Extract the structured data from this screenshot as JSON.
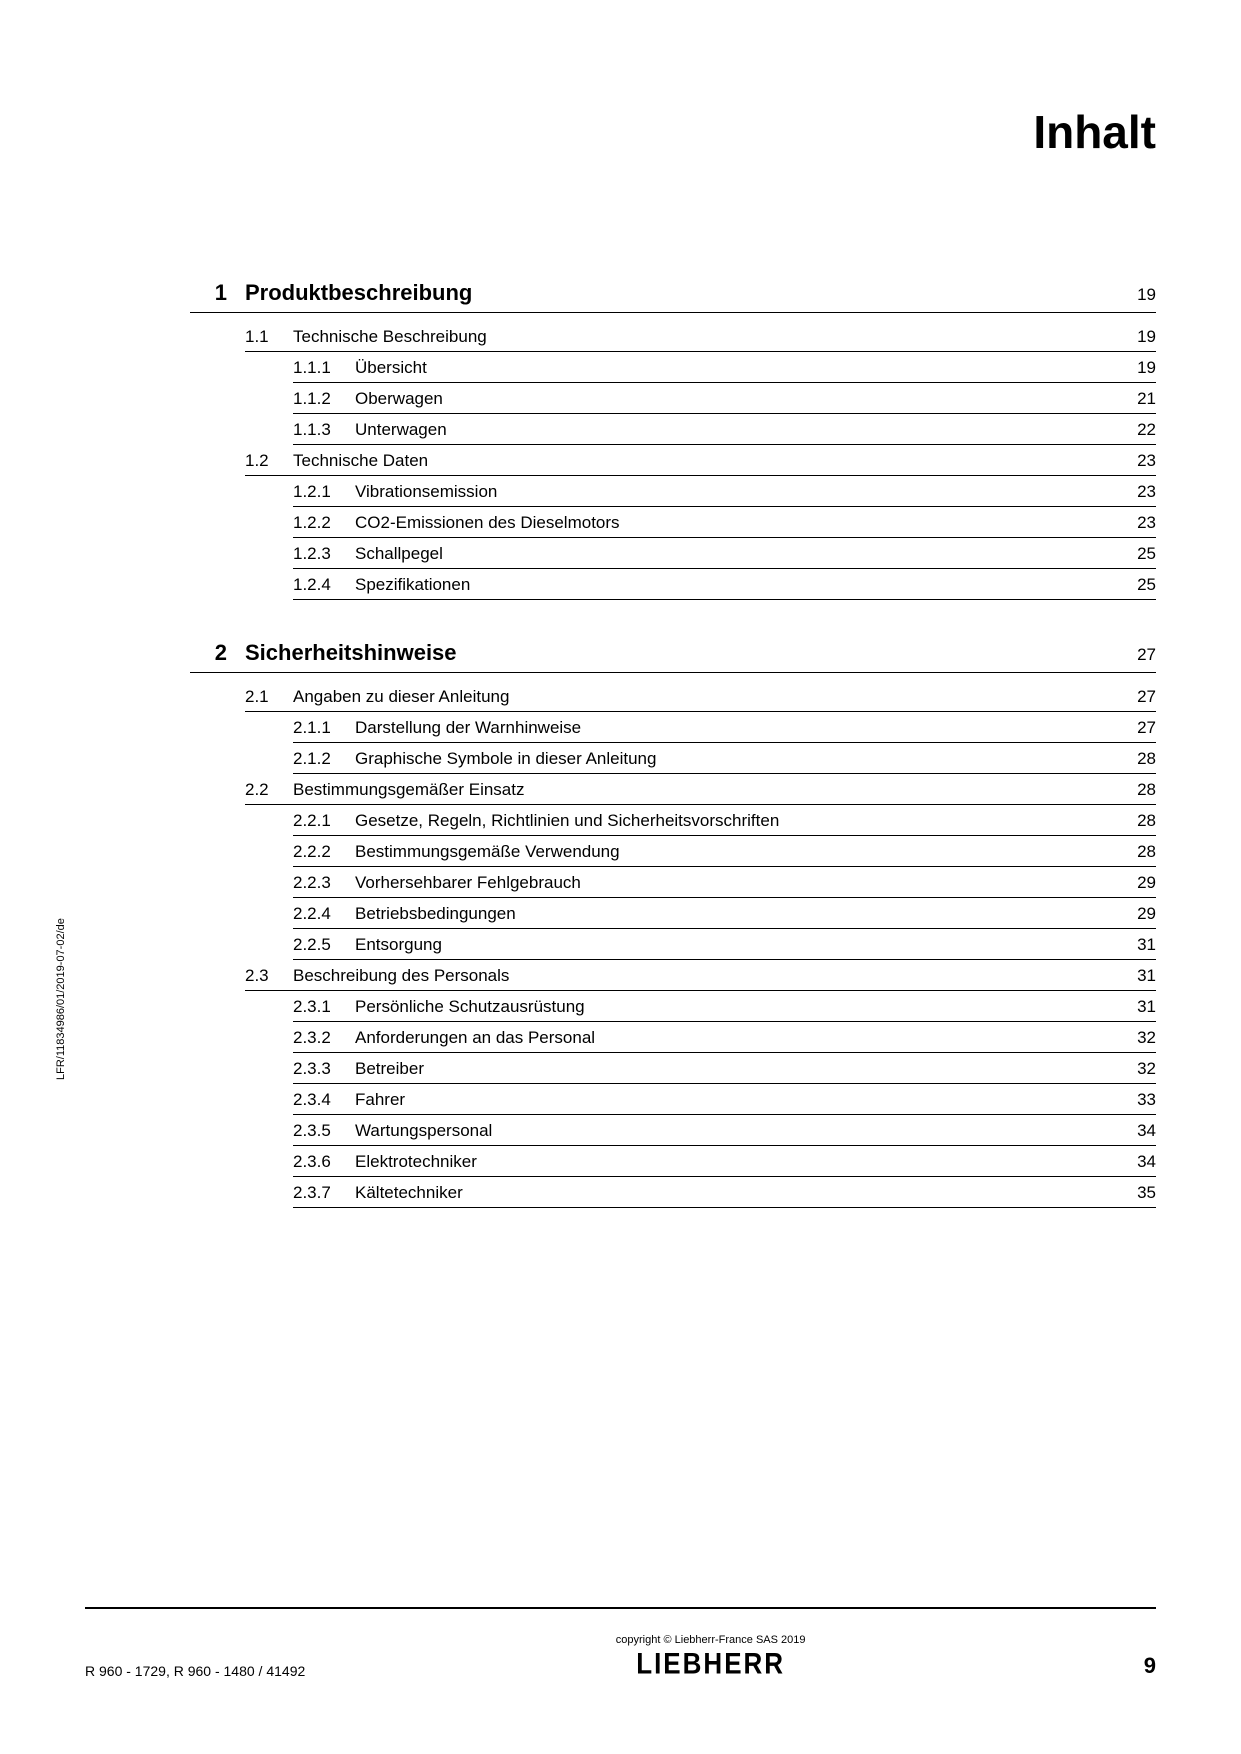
{
  "page_title": "Inhalt",
  "side_text": "LFR/11834986/01/2019-07-02/de",
  "footer": {
    "left": "R 960  - 1729, R 960  - 1480 / 41492",
    "copyright": "copyright © Liebherr-France SAS 2019",
    "logo": "LIEBHERR",
    "page_number": "9"
  },
  "toc": [
    {
      "num": "1",
      "title": "Produktbeschreibung",
      "page": "19",
      "sections": [
        {
          "num": "1.1",
          "title": "Technische Beschreibung",
          "page": "19",
          "subs": [
            {
              "num": "1.1.1",
              "title": "Übersicht",
              "page": "19"
            },
            {
              "num": "1.1.2",
              "title": "Oberwagen",
              "page": "21"
            },
            {
              "num": "1.1.3",
              "title": "Unterwagen",
              "page": "22"
            }
          ]
        },
        {
          "num": "1.2",
          "title": "Technische Daten",
          "page": "23",
          "subs": [
            {
              "num": "1.2.1",
              "title": "Vibrationsemission",
              "page": "23"
            },
            {
              "num": "1.2.2",
              "title": "CO2-Emissionen des Dieselmotors",
              "page": "23"
            },
            {
              "num": "1.2.3",
              "title": "Schallpegel",
              "page": "25"
            },
            {
              "num": "1.2.4",
              "title": "Spezifikationen",
              "page": "25"
            }
          ]
        }
      ]
    },
    {
      "num": "2",
      "title": "Sicherheitshinweise",
      "page": "27",
      "sections": [
        {
          "num": "2.1",
          "title": "Angaben zu dieser Anleitung",
          "page": "27",
          "subs": [
            {
              "num": "2.1.1",
              "title": "Darstellung der Warnhinweise",
              "page": "27"
            },
            {
              "num": "2.1.2",
              "title": "Graphische Symbole in dieser Anleitung",
              "page": "28"
            }
          ]
        },
        {
          "num": "2.2",
          "title": "Bestimmungsgemäßer Einsatz",
          "page": "28",
          "subs": [
            {
              "num": "2.2.1",
              "title": "Gesetze, Regeln, Richtlinien und Sicherheitsvorschriften",
              "page": "28"
            },
            {
              "num": "2.2.2",
              "title": "Bestimmungsgemäße Verwendung",
              "page": "28"
            },
            {
              "num": "2.2.3",
              "title": "Vorhersehbarer Fehlgebrauch",
              "page": "29"
            },
            {
              "num": "2.2.4",
              "title": "Betriebsbedingungen",
              "page": "29"
            },
            {
              "num": "2.2.5",
              "title": "Entsorgung",
              "page": "31"
            }
          ]
        },
        {
          "num": "2.3",
          "title": "Beschreibung des Personals",
          "page": "31",
          "subs": [
            {
              "num": "2.3.1",
              "title": "Persönliche Schutzausrüstung",
              "page": "31"
            },
            {
              "num": "2.3.2",
              "title": "Anforderungen an das Personal",
              "page": "32"
            },
            {
              "num": "2.3.3",
              "title": "Betreiber",
              "page": "32"
            },
            {
              "num": "2.3.4",
              "title": "Fahrer",
              "page": "33"
            },
            {
              "num": "2.3.5",
              "title": "Wartungspersonal",
              "page": "34"
            },
            {
              "num": "2.3.6",
              "title": "Elektrotechniker",
              "page": "34"
            },
            {
              "num": "2.3.7",
              "title": "Kältetechniker",
              "page": "35"
            }
          ]
        }
      ]
    }
  ]
}
